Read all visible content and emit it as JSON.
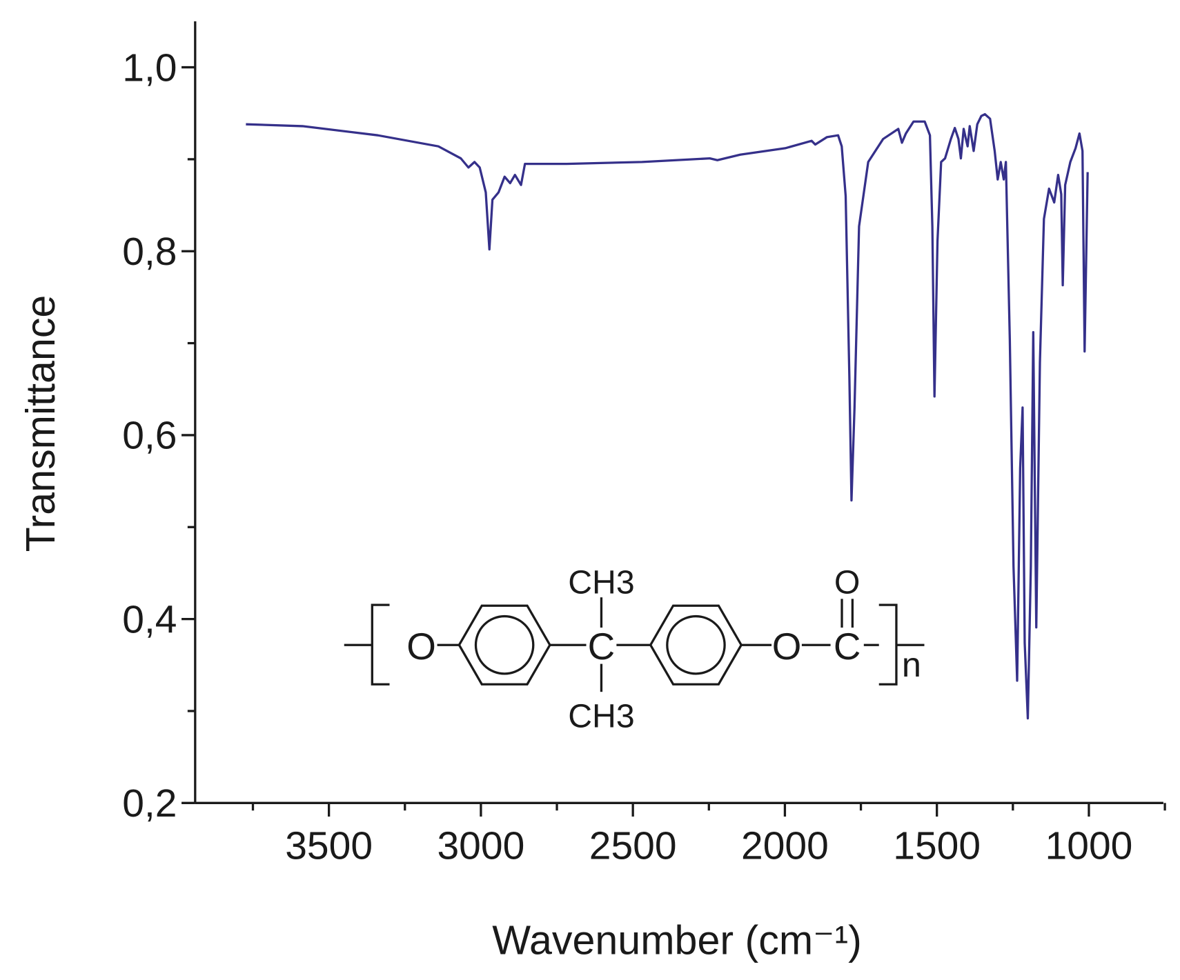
{
  "chart_data": {
    "type": "line",
    "x_label": "Wavenumber (cm⁻¹)",
    "y_label": "Transmittance",
    "xlim": [
      3940,
      755
    ],
    "ylim": [
      0.2,
      1.05
    ],
    "xticks": [
      3500,
      3000,
      2500,
      2000,
      1500,
      1000
    ],
    "xminorticks": [
      3750,
      3250,
      2750,
      2250,
      1750,
      1250,
      750
    ],
    "yticks": [
      {
        "value": 0.2,
        "label": "0,2"
      },
      {
        "value": 0.4,
        "label": "0,4"
      },
      {
        "value": 0.6,
        "label": "0,6"
      },
      {
        "value": 0.8,
        "label": "0,8"
      },
      {
        "value": 1.0,
        "label": "1,0"
      }
    ],
    "yminorticks": [
      0.3,
      0.5,
      0.7,
      0.9
    ],
    "grid": false,
    "structure_labels": [
      "O",
      "C",
      "CH3",
      "CH3",
      "O",
      "O",
      "C",
      "n"
    ],
    "series": [
      {
        "color": "#35308a",
        "x": [
          3773,
          3587,
          3339,
          3140,
          3066,
          3041,
          3021,
          3004,
          2984,
          2972,
          2962,
          2942,
          2922,
          2904,
          2888,
          2868,
          2855,
          2718,
          2470,
          2247,
          2222,
          2147,
          1999,
          1912,
          1900,
          1862,
          1825,
          1813,
          1800,
          1788,
          1781,
          1771,
          1756,
          1726,
          1677,
          1627,
          1615,
          1602,
          1577,
          1540,
          1523,
          1515,
          1508,
          1498,
          1486,
          1473,
          1454,
          1441,
          1429,
          1421,
          1412,
          1399,
          1392,
          1379,
          1367,
          1354,
          1342,
          1325,
          1310,
          1300,
          1290,
          1280,
          1273,
          1260,
          1248,
          1236,
          1226,
          1218,
          1211,
          1201,
          1191,
          1183,
          1173,
          1161,
          1148,
          1131,
          1114,
          1101,
          1091,
          1086,
          1078,
          1061,
          1044,
          1031,
          1021,
          1014,
          1004
        ],
        "values": [
          0.938,
          0.936,
          0.926,
          0.914,
          0.901,
          0.891,
          0.897,
          0.891,
          0.864,
          0.802,
          0.856,
          0.864,
          0.881,
          0.874,
          0.883,
          0.872,
          0.895,
          0.895,
          0.897,
          0.901,
          0.899,
          0.905,
          0.912,
          0.92,
          0.916,
          0.924,
          0.926,
          0.914,
          0.86,
          0.663,
          0.529,
          0.63,
          0.827,
          0.897,
          0.922,
          0.933,
          0.918,
          0.928,
          0.941,
          0.941,
          0.926,
          0.827,
          0.642,
          0.811,
          0.897,
          0.901,
          0.922,
          0.934,
          0.922,
          0.901,
          0.933,
          0.914,
          0.936,
          0.909,
          0.938,
          0.947,
          0.949,
          0.944,
          0.909,
          0.878,
          0.897,
          0.878,
          0.897,
          0.704,
          0.457,
          0.333,
          0.564,
          0.63,
          0.374,
          0.292,
          0.457,
          0.712,
          0.391,
          0.679,
          0.835,
          0.868,
          0.853,
          0.883,
          0.862,
          0.763,
          0.872,
          0.897,
          0.912,
          0.928,
          0.909,
          0.691,
          0.886
        ]
      }
    ]
  }
}
